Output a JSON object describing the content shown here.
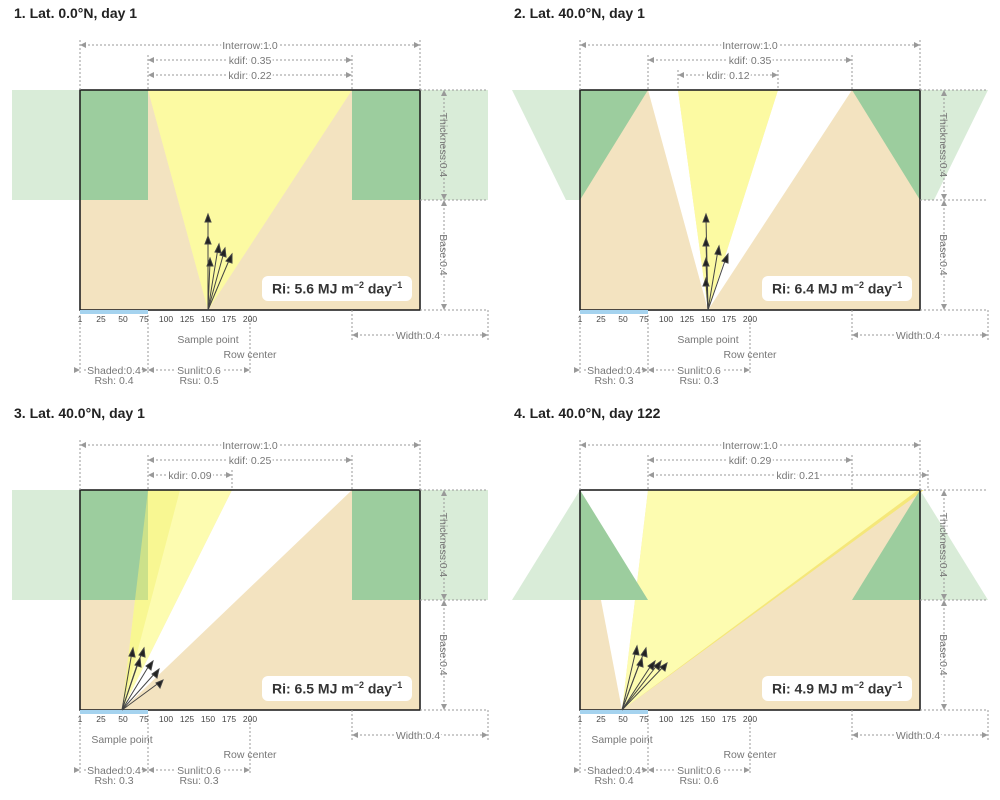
{
  "colors": {
    "crop": "#9ccd9e",
    "crop_light": "#d9ecd8",
    "soil": "#f3e3c0",
    "kdif": "#fdfcb0",
    "kdir": "#fbf797",
    "gray": "#888888"
  },
  "panels": [
    {
      "title": "1. Lat. 0.0°N, day 1",
      "ri": {
        "prefix": "Ri: 5.6 MJ m",
        "exp1": "−2",
        "mid": " day",
        "exp2": "−1"
      },
      "labels": {
        "interrow": "Interrow:1.0",
        "kdif": "kdif: 0.35",
        "kdir": "kdir: 0.22",
        "thickness": "Thickness:0.4",
        "base": "Base:0.4",
        "width": "Width:0.4",
        "sample_point": "Sample point",
        "row_center": "Row center",
        "shaded": "Shaded:0.4",
        "rsh": "Rsh: 0.4",
        "sunlit": "Sunlit:0.6",
        "rsu": "Rsu: 0.5"
      }
    },
    {
      "title": "2. Lat. 40.0°N, day 1",
      "ri": {
        "prefix": "Ri: 6.4 MJ m",
        "exp1": "−2",
        "mid": " day",
        "exp2": "−1"
      },
      "labels": {
        "interrow": "Interrow:1.0",
        "kdif": "kdif: 0.35",
        "kdir": "kdir: 0.12",
        "thickness": "Thickness:0.4",
        "base": "Base:0.4",
        "width": "Width:0.4",
        "sample_point": "Sample point",
        "row_center": "Row center",
        "shaded": "Shaded:0.4",
        "rsh": "Rsh: 0.3",
        "sunlit": "Sunlit:0.6",
        "rsu": "Rsu: 0.3"
      }
    },
    {
      "title": "3. Lat. 40.0°N, day 1",
      "ri": {
        "prefix": "Ri: 6.5 MJ m",
        "exp1": "−2",
        "mid": " day",
        "exp2": "−1"
      },
      "labels": {
        "interrow": "Interrow:1.0",
        "kdif": "kdif: 0.25",
        "kdir": "kdir: 0.09",
        "thickness": "Thickness:0.4",
        "base": "Base:0.4",
        "width": "Width:0.4",
        "sample_point": "Sample point",
        "row_center": "Row center",
        "shaded": "Shaded:0.4",
        "rsh": "Rsh: 0.3",
        "sunlit": "Sunlit:0.6",
        "rsu": "Rsu: 0.3"
      }
    },
    {
      "title": "4. Lat. 40.0°N, day 122",
      "ri": {
        "prefix": "Ri: 4.9 MJ m",
        "exp1": "−2",
        "mid": " day",
        "exp2": "−1"
      },
      "labels": {
        "interrow": "Interrow:1.0",
        "kdif": "kdif: 0.29",
        "kdir": "kdir: 0.21",
        "thickness": "Thickness:0.4",
        "base": "Base:0.4",
        "width": "Width:0.4",
        "sample_point": "Sample point",
        "row_center": "Row center",
        "shaded": "Shaded:0.4",
        "rsh": "Rsh: 0.4",
        "sunlit": "Sunlit:0.6",
        "rsu": "Rsu: 0.6"
      }
    }
  ],
  "ticks": [
    "1",
    "25",
    "50",
    "75",
    "100",
    "125",
    "150",
    "175",
    "200"
  ]
}
